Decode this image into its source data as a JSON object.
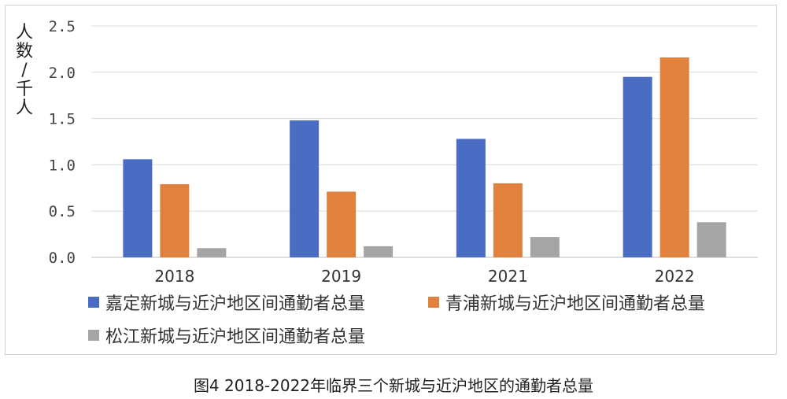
{
  "chart_data": {
    "type": "bar",
    "title": "",
    "ylabel": "人数/千人",
    "xlabel": "",
    "ylim": [
      0,
      2.5
    ],
    "yticks": [
      "0.0",
      "0.5",
      "1.0",
      "1.5",
      "2.0",
      "2.5"
    ],
    "categories": [
      "2018",
      "2019",
      "2021",
      "2022"
    ],
    "grid": true,
    "legend_position": "bottom",
    "series": [
      {
        "name": "嘉定新城与近沪地区间通勤者总量",
        "color": "#4a6cc2",
        "values": [
          1.06,
          1.48,
          1.28,
          1.95
        ]
      },
      {
        "name": "青浦新城与近沪地区间通勤者总量",
        "color": "#e0823e",
        "values": [
          0.79,
          0.71,
          0.8,
          2.16
        ]
      },
      {
        "name": "松江新城与近沪地区间通勤者总量",
        "color": "#a5a5a5",
        "values": [
          0.1,
          0.12,
          0.22,
          0.38
        ]
      }
    ]
  },
  "caption": "图4  2018-2022年临界三个新城与近沪地区的通勤者总量"
}
